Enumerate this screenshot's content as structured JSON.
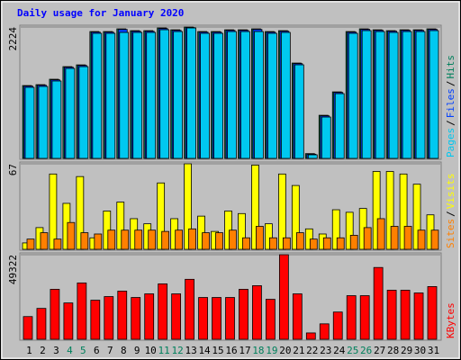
{
  "chart_data": [
    {
      "type": "bar",
      "title": "Daily usage for January 2020",
      "ylim": [
        0,
        2224
      ],
      "yticks": [
        2224
      ],
      "grid": true,
      "legend_separator": "/",
      "series": [
        {
          "name": "Hits",
          "color": "#00805c",
          "values": [
            1233,
            1248,
            1340,
            1553,
            1583,
            2147,
            2147,
            2193,
            2162,
            2162,
            2208,
            2177,
            2224,
            2147,
            2147,
            2177,
            2177,
            2193,
            2147,
            2162,
            1614,
            81,
            730,
            1126,
            2147,
            2193,
            2177,
            2162,
            2177,
            2177,
            2193
          ]
        },
        {
          "name": "Files",
          "color": "#0040ff",
          "values": [
            1223,
            1238,
            1330,
            1543,
            1573,
            2137,
            2137,
            2183,
            2152,
            2152,
            2198,
            2167,
            2214,
            2137,
            2137,
            2167,
            2167,
            2183,
            2137,
            2152,
            1604,
            71,
            720,
            1116,
            2137,
            2183,
            2167,
            2152,
            2167,
            2167,
            2183
          ]
        },
        {
          "name": "Pages",
          "color": "#00c8f0",
          "values": [
            1203,
            1218,
            1310,
            1523,
            1553,
            2117,
            2117,
            2132,
            2132,
            2132,
            2178,
            2147,
            2208,
            2117,
            2117,
            2147,
            2147,
            2147,
            2117,
            2132,
            1584,
            61,
            700,
            1096,
            2117,
            2163,
            2147,
            2132,
            2147,
            2147,
            2163
          ]
        }
      ]
    },
    {
      "type": "bar",
      "ylim": [
        0,
        67
      ],
      "yticks": [
        67
      ],
      "grid": true,
      "legend_separator": "/",
      "series": [
        {
          "name": "Visits",
          "color": "#ffff00",
          "values": [
            5,
            17,
            59,
            36,
            57,
            9,
            30,
            37,
            24,
            20,
            52,
            24,
            67,
            26,
            14,
            30,
            28,
            66,
            20,
            59,
            50,
            16,
            12,
            31,
            29,
            32,
            61,
            61,
            59,
            51,
            27
          ]
        },
        {
          "name": "Sites",
          "color": "#ff8000",
          "values": [
            8,
            13,
            8,
            21,
            13,
            12,
            15,
            15,
            15,
            15,
            14,
            15,
            16,
            13,
            13,
            15,
            9,
            18,
            9,
            9,
            13,
            8,
            9,
            9,
            11,
            17,
            24,
            18,
            18,
            15,
            15
          ]
        }
      ]
    },
    {
      "type": "bar",
      "ylim": [
        0,
        49322
      ],
      "yticks": [
        49322
      ],
      "grid": true,
      "categories": [
        "1",
        "2",
        "3",
        "4",
        "5",
        "6",
        "7",
        "8",
        "9",
        "10",
        "11",
        "12",
        "13",
        "14",
        "15",
        "16",
        "17",
        "18",
        "19",
        "20",
        "21",
        "22",
        "23",
        "24",
        "25",
        "26",
        "27",
        "28",
        "29",
        "30",
        "31"
      ],
      "category_colors": [
        "#000000",
        "#000000",
        "#000000",
        "#00805c",
        "#00805c",
        "#000000",
        "#000000",
        "#000000",
        "#000000",
        "#000000",
        "#00805c",
        "#00805c",
        "#000000",
        "#000000",
        "#000000",
        "#000000",
        "#000000",
        "#00805c",
        "#00805c",
        "#000000",
        "#000000",
        "#000000",
        "#000000",
        "#000000",
        "#00805c",
        "#00805c",
        "#000000",
        "#000000",
        "#000000",
        "#000000",
        "#000000"
      ],
      "series": [
        {
          "name": "KBytes",
          "color": "#ff0000",
          "values": [
            13250,
            18020,
            29150,
            21200,
            32860,
            22790,
            24910,
            28090,
            24380,
            26500,
            32330,
            26500,
            34980,
            24380,
            24380,
            24380,
            29150,
            31270,
            23320,
            49322,
            26500,
            3710,
            9010,
            15900,
            25440,
            25440,
            41870,
            28620,
            28620,
            27030,
            30740
          ]
        }
      ]
    }
  ]
}
